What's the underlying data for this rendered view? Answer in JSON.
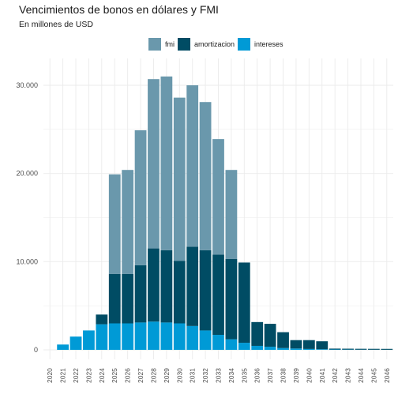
{
  "chart_data": {
    "type": "bar",
    "stacked": true,
    "title": "Vencimientos de bonos en dólares y FMI",
    "subtitle": "En millones de USD",
    "xlabel": "",
    "ylabel": "",
    "ylim": [
      0,
      32000
    ],
    "y_ticks": [
      0,
      10000,
      20000,
      30000
    ],
    "y_tick_labels": [
      "0",
      "10.000",
      "20.000",
      "30.000"
    ],
    "grid": true,
    "legend_position": "top",
    "categories": [
      "2020",
      "2021",
      "2022",
      "2023",
      "2024",
      "2025",
      "2026",
      "2027",
      "2028",
      "2029",
      "2030",
      "2031",
      "2032",
      "2033",
      "2034",
      "2035",
      "2036",
      "2037",
      "2038",
      "2039",
      "2040",
      "2041",
      "2042",
      "2043",
      "2044",
      "2045",
      "2046"
    ],
    "series": [
      {
        "name": "intereses",
        "color": "#009ad6",
        "values": [
          0,
          600,
          1500,
          2200,
          2900,
          3000,
          3000,
          3100,
          3200,
          3100,
          3000,
          2700,
          2200,
          1700,
          1200,
          800,
          450,
          350,
          200,
          150,
          100,
          70,
          40,
          30,
          20,
          15,
          10
        ]
      },
      {
        "name": "amortizacion",
        "color": "#004c64",
        "values": [
          0,
          0,
          0,
          0,
          1100,
          5600,
          5600,
          6500,
          8300,
          8200,
          7100,
          9000,
          9100,
          9100,
          9100,
          9100,
          2700,
          2600,
          1800,
          950,
          1000,
          900,
          100,
          100,
          100,
          100,
          100
        ]
      },
      {
        "name": "fmi",
        "color": "#6a98ac",
        "values": [
          0,
          0,
          0,
          0,
          0,
          11300,
          11800,
          15300,
          19200,
          19700,
          18500,
          18300,
          16800,
          13100,
          10100,
          0,
          0,
          0,
          0,
          0,
          0,
          0,
          0,
          0,
          0,
          0,
          0
        ]
      }
    ],
    "legend_order": [
      "fmi",
      "amortizacion",
      "intereses"
    ]
  }
}
